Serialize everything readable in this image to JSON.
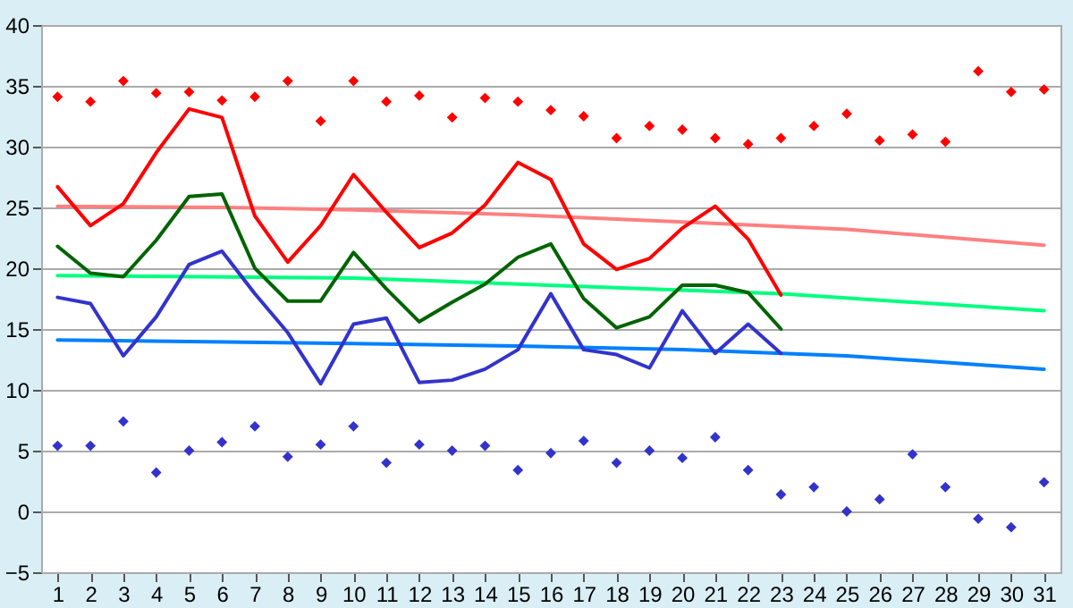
{
  "chart_data": {
    "type": "line",
    "x": [
      1,
      2,
      3,
      4,
      5,
      6,
      7,
      8,
      9,
      10,
      11,
      12,
      13,
      14,
      15,
      16,
      17,
      18,
      19,
      20,
      21,
      22,
      23,
      24,
      25,
      26,
      27,
      28,
      29,
      30,
      31
    ],
    "xlim": [
      0.5,
      31.5
    ],
    "xticks": [
      1,
      2,
      3,
      4,
      5,
      6,
      7,
      8,
      9,
      10,
      11,
      12,
      13,
      14,
      15,
      16,
      17,
      18,
      19,
      20,
      21,
      22,
      23,
      24,
      25,
      26,
      27,
      28,
      29,
      30,
      31
    ],
    "ylim": [
      -5,
      40
    ],
    "yticks": [
      -5,
      0,
      5,
      10,
      15,
      20,
      25,
      30,
      35,
      40
    ],
    "grid": "y",
    "series": [
      {
        "type": "scatter",
        "marker": "diamond",
        "color": "#ff0000",
        "values": [
          34.1,
          33.7,
          35.4,
          34.4,
          34.5,
          33.8,
          34.1,
          35.4,
          32.1,
          35.4,
          33.7,
          34.2,
          32.4,
          34.0,
          33.7,
          33.0,
          32.5,
          30.7,
          31.7,
          31.4,
          30.7,
          30.2,
          30.7,
          31.7,
          32.7,
          30.5,
          31.0,
          30.4,
          36.2,
          34.5,
          34.7
        ]
      },
      {
        "type": "scatter",
        "marker": "diamond",
        "color": "#3333cc",
        "values": [
          5.4,
          5.4,
          7.4,
          3.2,
          5.0,
          5.7,
          7.0,
          4.5,
          5.5,
          7.0,
          4.0,
          5.5,
          5.0,
          5.4,
          3.4,
          4.8,
          5.8,
          4.0,
          5.0,
          4.4,
          6.1,
          3.4,
          1.4,
          2.0,
          0.0,
          1.0,
          4.7,
          2.0,
          -0.6,
          -1.3,
          2.4
        ]
      },
      {
        "color": "#ff8080",
        "x": [
          1,
          6,
          10,
          15,
          20,
          25,
          31
        ],
        "values": [
          25.1,
          25.0,
          24.8,
          24.4,
          23.8,
          23.2,
          21.9
        ]
      },
      {
        "color": "#00ff80",
        "x": [
          1,
          10,
          15,
          20,
          23,
          31
        ],
        "values": [
          19.4,
          19.2,
          18.7,
          18.2,
          17.9,
          16.5
        ]
      },
      {
        "color": "#0080ff",
        "x": [
          1,
          10,
          15,
          20,
          25,
          31
        ],
        "values": [
          14.1,
          13.8,
          13.6,
          13.3,
          12.8,
          11.7
        ]
      },
      {
        "color": "#ff0000",
        "x": [
          1,
          2,
          3,
          4,
          5,
          6,
          7,
          8,
          9,
          10,
          11,
          12,
          13,
          14,
          15,
          16,
          17,
          18,
          19,
          20,
          21,
          22,
          23
        ],
        "values": [
          26.7,
          23.5,
          25.3,
          29.5,
          33.1,
          32.4,
          24.3,
          20.5,
          23.5,
          27.7,
          24.6,
          21.7,
          22.9,
          25.2,
          28.7,
          27.3,
          22.0,
          19.9,
          20.8,
          23.3,
          25.1,
          22.4,
          17.8
        ]
      },
      {
        "color": "#006400",
        "x": [
          1,
          2,
          3,
          4,
          5,
          6,
          7,
          8,
          9,
          10,
          11,
          12,
          13,
          14,
          15,
          16,
          17,
          18,
          19,
          20,
          21,
          22,
          23
        ],
        "values": [
          21.8,
          19.6,
          19.3,
          22.3,
          25.9,
          26.1,
          20.0,
          17.3,
          17.3,
          21.3,
          18.3,
          15.6,
          17.2,
          18.7,
          20.9,
          22.0,
          17.5,
          15.1,
          16.0,
          18.6,
          18.6,
          18.0,
          15.0
        ]
      },
      {
        "color": "#3333cc",
        "x": [
          1,
          2,
          3,
          4,
          5,
          6,
          7,
          8,
          9,
          10,
          11,
          12,
          13,
          14,
          15,
          16,
          17,
          18,
          19,
          20,
          21,
          22,
          23
        ],
        "values": [
          17.6,
          17.1,
          12.8,
          16.0,
          20.3,
          21.4,
          17.9,
          14.7,
          10.5,
          15.4,
          15.9,
          10.6,
          10.8,
          11.7,
          13.3,
          17.9,
          13.3,
          12.9,
          11.8,
          16.5,
          13.0,
          15.4,
          13.0
        ]
      }
    ]
  }
}
